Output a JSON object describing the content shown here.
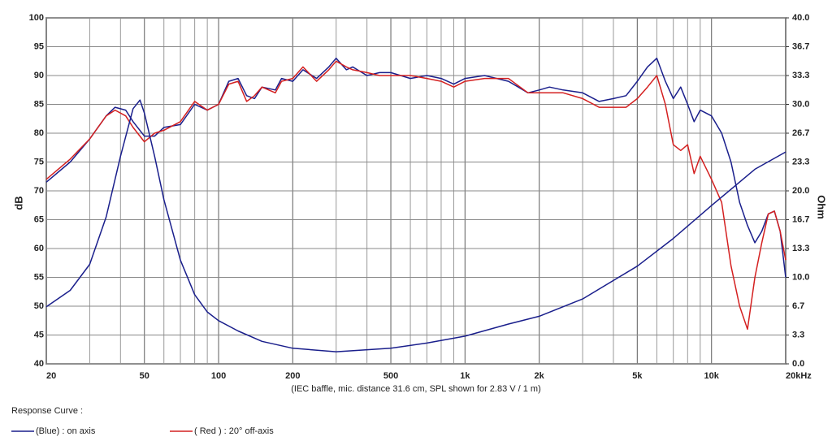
{
  "chart_data": {
    "type": "line",
    "xlabel": "(IEC baffle, mic. distance 31.6 cm, SPL shown for 2.83 V / 1 m)",
    "ylabel": "dB",
    "y2label": "Ohm",
    "legend_title": "Response Curve :",
    "xscale": "log",
    "xlim": [
      20,
      20000
    ],
    "xticks": [
      20,
      50,
      100,
      200,
      500,
      {
        "value": 1000,
        "label": "1k"
      },
      {
        "value": 2000,
        "label": "2k"
      },
      {
        "value": 5000,
        "label": "5k"
      },
      {
        "value": 10000,
        "label": "10k"
      },
      {
        "value": 20000,
        "label": "20kHz"
      }
    ],
    "xgrid_minor": [
      30,
      40,
      60,
      70,
      80,
      90,
      300,
      400,
      600,
      700,
      800,
      900,
      3000,
      4000,
      6000,
      7000,
      8000,
      9000
    ],
    "ylim": [
      40,
      100
    ],
    "yticks": [
      40,
      45,
      50,
      55,
      60,
      65,
      70,
      75,
      80,
      85,
      90,
      95,
      100
    ],
    "y2lim": [
      0,
      40
    ],
    "y2ticks": [
      {
        "value": 0,
        "label": "0.0"
      },
      {
        "value": 3.333,
        "label": "3.3"
      },
      {
        "value": 6.667,
        "label": "6.7"
      },
      {
        "value": 10,
        "label": "10.0"
      },
      {
        "value": 13.333,
        "label": "13.3"
      },
      {
        "value": 16.667,
        "label": "16.7"
      },
      {
        "value": 20,
        "label": "20.0"
      },
      {
        "value": 23.333,
        "label": "23.3"
      },
      {
        "value": 26.667,
        "label": "26.7"
      },
      {
        "value": 30,
        "label": "30.0"
      },
      {
        "value": 33.333,
        "label": "33.3"
      },
      {
        "value": 36.667,
        "label": "36.7"
      },
      {
        "value": 40,
        "label": "40.0"
      }
    ],
    "grid": true,
    "series": [
      {
        "name": "(Blue)  : on axis",
        "color": "#1a1f8c",
        "x": [
          20,
          25,
          30,
          35,
          38,
          42,
          45,
          50,
          55,
          60,
          70,
          80,
          90,
          100,
          110,
          120,
          130,
          140,
          150,
          170,
          180,
          200,
          220,
          250,
          280,
          300,
          330,
          350,
          400,
          450,
          500,
          600,
          700,
          800,
          900,
          1000,
          1200,
          1500,
          1800,
          2000,
          2200,
          2500,
          3000,
          3500,
          4000,
          4500,
          5000,
          5500,
          6000,
          6500,
          7000,
          7500,
          8000,
          8500,
          9000,
          10000,
          11000,
          12000,
          13000,
          14000,
          15000,
          16000,
          17000,
          18000,
          19000,
          20000
        ],
        "values": [
          71.5,
          75,
          79,
          83,
          84.5,
          84,
          82,
          79.5,
          79.5,
          81,
          81.5,
          85,
          84,
          85,
          89,
          89.5,
          86.5,
          86,
          88,
          87.5,
          89.5,
          89,
          91,
          89.5,
          91.5,
          93,
          91,
          91.5,
          90,
          90.5,
          90.5,
          89.5,
          90,
          89.5,
          88.5,
          89.5,
          90,
          89,
          87,
          87.5,
          88,
          87.5,
          87,
          85.5,
          86,
          86.5,
          89,
          91.5,
          93,
          89,
          86,
          88,
          85,
          82,
          84,
          83,
          80,
          75,
          68,
          64,
          61,
          63,
          66,
          66.5,
          63,
          55
        ]
      },
      {
        "name": "( Red ) : 20° off-axis",
        "color": "#d42020",
        "x": [
          20,
          25,
          30,
          35,
          38,
          42,
          45,
          50,
          55,
          60,
          70,
          80,
          90,
          100,
          110,
          120,
          130,
          140,
          150,
          170,
          180,
          200,
          220,
          250,
          280,
          300,
          330,
          350,
          400,
          450,
          500,
          600,
          700,
          800,
          900,
          1000,
          1200,
          1500,
          1800,
          2000,
          2200,
          2500,
          3000,
          3500,
          4000,
          4500,
          5000,
          5500,
          6000,
          6500,
          7000,
          7500,
          8000,
          8500,
          9000,
          10000,
          11000,
          12000,
          13000,
          14000,
          15000,
          16000,
          17000,
          18000,
          19000,
          20000
        ],
        "values": [
          72,
          75.5,
          79,
          83,
          84,
          83,
          81,
          78.5,
          80,
          80.5,
          82,
          85.5,
          84,
          85,
          88.5,
          89,
          85.5,
          86.5,
          88,
          87,
          89,
          89.5,
          91.5,
          89,
          91,
          92.5,
          91.5,
          91,
          90.5,
          90,
          90,
          90,
          89.5,
          89,
          88,
          89,
          89.5,
          89.5,
          87,
          87,
          87,
          87,
          86,
          84.5,
          84.5,
          84.5,
          86,
          88,
          90,
          85,
          78,
          77,
          78,
          73,
          76,
          72,
          68,
          57,
          50,
          46,
          55,
          61,
          66,
          66.5,
          63,
          58
        ]
      },
      {
        "color": "#1a1f8c",
        "axis": "y2",
        "x": [
          20,
          25,
          30,
          35,
          40,
          45,
          48,
          50,
          55,
          60,
          70,
          80,
          90,
          100,
          120,
          150,
          200,
          300,
          500,
          700,
          1000,
          1500,
          2000,
          3000,
          5000,
          7000,
          10000,
          15000,
          20000
        ],
        "values": [
          6.6,
          8.5,
          11.5,
          17,
          24,
          29.5,
          30.5,
          29,
          24,
          19,
          12,
          8,
          6,
          5,
          3.8,
          2.6,
          1.8,
          1.4,
          1.8,
          2.4,
          3.2,
          4.6,
          5.5,
          7.5,
          11.3,
          14.5,
          18.3,
          22.5,
          24.5
        ]
      }
    ]
  }
}
